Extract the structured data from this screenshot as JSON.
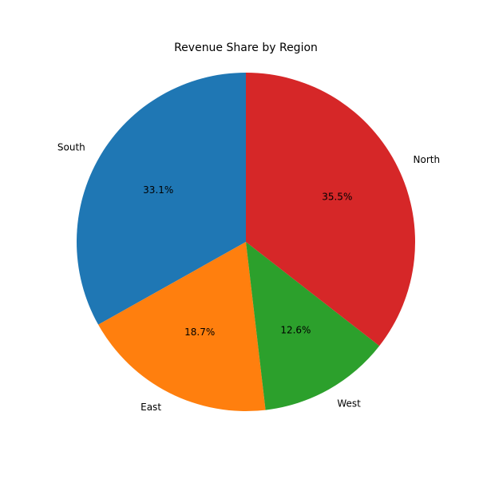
{
  "chart_data": {
    "type": "pie",
    "title": "Revenue Share by Region",
    "start_angle_deg": 90,
    "direction": "counterclockwise",
    "slices": [
      {
        "label": "South",
        "value": 33.1,
        "pct_label": "33.1%",
        "color": "#1f77b4"
      },
      {
        "label": "East",
        "value": 18.7,
        "pct_label": "18.7%",
        "color": "#ff7f0e"
      },
      {
        "label": "West",
        "value": 12.6,
        "pct_label": "12.6%",
        "color": "#2ca02c"
      },
      {
        "label": "North",
        "value": 35.5,
        "pct_label": "35.5%",
        "color": "#d62728"
      }
    ]
  }
}
